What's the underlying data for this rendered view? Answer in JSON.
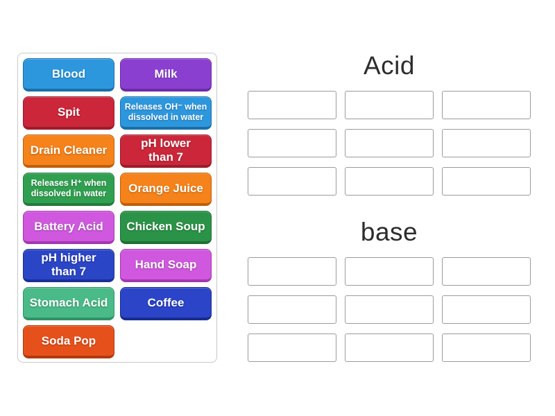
{
  "page": {
    "background": "#ffffff",
    "heading_color": "#2d2d2d",
    "slot_border_color": "#9b9b9b",
    "panel_border_color": "#c9c9c9"
  },
  "tile_panel": {
    "tiles": [
      {
        "id": "blood",
        "label": "Blood",
        "color": "#2d97de",
        "dark": "#1a6fa9",
        "small": false
      },
      {
        "id": "milk",
        "label": "Milk",
        "color": "#8a3fd1",
        "dark": "#6d2ca6",
        "small": false
      },
      {
        "id": "spit",
        "label": "Spit",
        "color": "#cb2639",
        "dark": "#9c1c2b",
        "small": false
      },
      {
        "id": "releases-oh-when-dissolved-in-water",
        "label": "Releases OH⁻ when\ndissolved in water",
        "color": "#2d97de",
        "dark": "#1a6fa9",
        "small": true
      },
      {
        "id": "drain-cleaner",
        "label": "Drain Cleaner",
        "color": "#f5821a",
        "dark": "#c05f0a",
        "small": false
      },
      {
        "id": "ph-lower-than-7",
        "label": "pH lower\nthan 7",
        "color": "#cb2639",
        "dark": "#9c1c2b",
        "small": false
      },
      {
        "id": "releases-h-when-dissolved-in-water",
        "label": "Releases H⁺ when\ndissolved in water",
        "color": "#30a050",
        "dark": "#237a3b",
        "small": true
      },
      {
        "id": "orange-juice",
        "label": "Orange Juice",
        "color": "#f5821a",
        "dark": "#c05f0a",
        "small": false
      },
      {
        "id": "battery-acid",
        "label": "Battery Acid",
        "color": "#cf58de",
        "dark": "#a338b2",
        "small": false
      },
      {
        "id": "chicken-soup",
        "label": "Chicken Soup",
        "color": "#2b9347",
        "dark": "#1f7034",
        "small": false
      },
      {
        "id": "ph-higher-than-7",
        "label": "pH higher\nthan 7",
        "color": "#2b45c7",
        "dark": "#1a2f97",
        "small": false
      },
      {
        "id": "hand-soap",
        "label": "Hand Soap",
        "color": "#cf58de",
        "dark": "#a338b2",
        "small": false
      },
      {
        "id": "stomach-acid",
        "label": "Stomach Acid",
        "color": "#4aba88",
        "dark": "#2e9367",
        "small": false
      },
      {
        "id": "coffee",
        "label": "Coffee",
        "color": "#2b44c8",
        "dark": "#182c8f",
        "small": false
      },
      {
        "id": "soda-pop",
        "label": "Soda Pop",
        "color": "#e6511b",
        "dark": "#b13a0f",
        "small": false
      }
    ]
  },
  "groups": [
    {
      "id": "acid",
      "label": "Acid",
      "slot_count": 9
    },
    {
      "id": "base",
      "label": "base",
      "slot_count": 9
    }
  ]
}
